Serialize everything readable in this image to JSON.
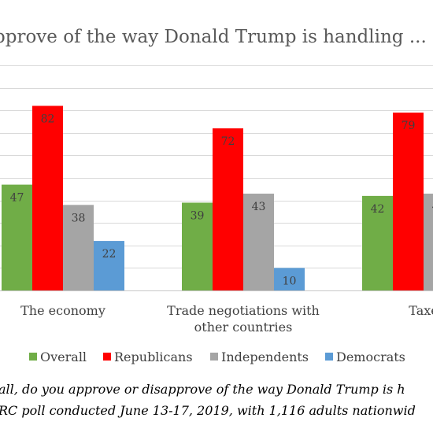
{
  "chart_data": {
    "type": "bar",
    "title": "pprove of the way Donald Trump is handling ...",
    "categories": [
      [
        "The economy"
      ],
      [
        "Trade negotiations with",
        "other countries"
      ],
      [
        "Taxe"
      ]
    ],
    "series": [
      {
        "name": "Overall",
        "values": [
          47,
          39,
          42
        ],
        "color": "#70ad47"
      },
      {
        "name": "Republicans",
        "values": [
          82,
          72,
          79
        ],
        "color": "#ff0000"
      },
      {
        "name": "Independents",
        "values": [
          38,
          43,
          43
        ],
        "color": "#a5a5a5"
      },
      {
        "name": "Democrats",
        "values": [
          22,
          10,
          null
        ],
        "color": "#5b9bd5"
      }
    ],
    "ylim": [
      0,
      100
    ],
    "grid": true,
    "legend_position": "bottom",
    "footnote_lines": [
      "all, do you approve or disapprove of the way Donald Trump is h",
      "RC poll conducted June 13-17, 2019, with 1,116 adults nationwid"
    ]
  }
}
